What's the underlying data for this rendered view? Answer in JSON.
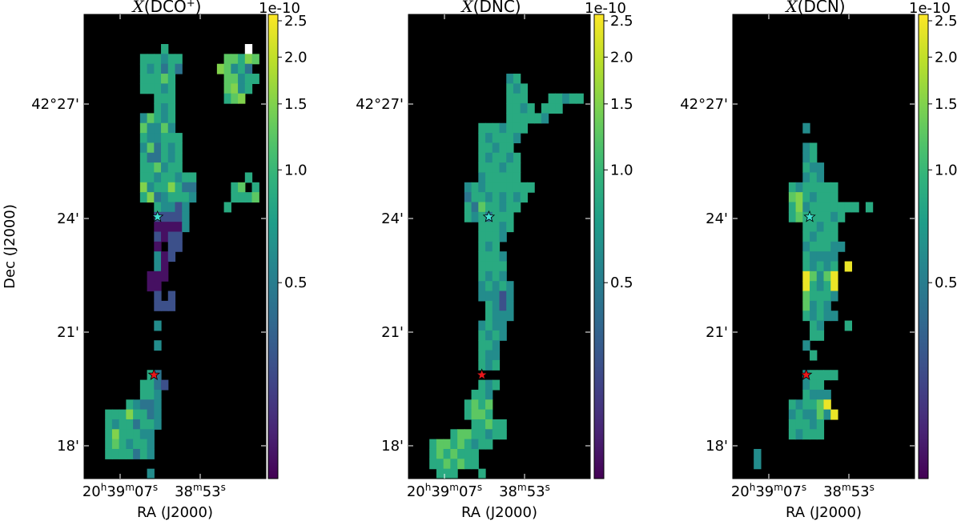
{
  "chart_data": {
    "type": "heatmap",
    "xlabel": "RA (J2000)",
    "ylabel": "Dec (J2000)",
    "y_tick_labels": [
      "42°27'",
      "24'",
      "21'",
      "18'"
    ],
    "x_tick_labels": [
      {
        "h": "20",
        "hu": "h",
        "m": "39",
        "mu": "m",
        "s": "07",
        "su": "s"
      },
      {
        "h": "",
        "hu": "",
        "m": "38",
        "mu": "m",
        "s": "53",
        "su": "s"
      }
    ],
    "colorbar": {
      "colormap": "viridis",
      "scale": "log",
      "multiplier": "1e-10",
      "min": 0.15,
      "max": 2.6,
      "ticks": [
        0.5,
        1.0,
        1.5,
        2.0,
        2.5
      ],
      "tick_labels": [
        "0.5",
        "1.0",
        "1.5",
        "2.0",
        "2.5"
      ]
    },
    "panels": [
      {
        "title_main": "X",
        "title_species": "(DCO",
        "title_sup": "+",
        "title_end": ")",
        "grid": [
          "..........................",
          "..........................",
          "..........................",
          "...........+...........|..",
          "........+++=++......**+$*.",
          "........+=+%+%.....$*=+%..",
          "........+++*+.......**=++.",
          "........+++=+.......*$=+..",
          "..........+++.......+*$...",
          "..........+=+.............",
          "........=*+=+.............",
          "........*==*=.............",
          "........+==+++............",
          "........=*%+=+............",
          "........+%%+=+............",
          "........++*=++............",
          "........++=++=++.......+..",
          "........$=++$+%%.....+*.+.",
          "........+$%=+++=.....+++*.",
          "..........+==-=.....+.....",
          "..........----=...........",
          "..........::::=...........",
          "..........-:--............",
          "..........:.--............",
          "..........=:-.............",
          "..........=:..............",
          ".........:::..............",
          ".........::...............",
          "..........-.-.............",
          "..........---.............",
          "..........................",
          "..........=...............",
          "..........................",
          "..........=...............",
          "..........................",
          "..........................",
          ".........+%...............",
          "........++%-..............",
          "........++=...............",
          "......+=%%=...............",
          "...+++$++%=...............",
          "...+=++%++=...............",
          "...+$+++==................",
          "...+*+=++=................",
          "...++++%+=................",
          "..........................",
          ".........=................"
        ],
        "stars": [
          {
            "row": 20.5,
            "col": 10.5,
            "color": "#40e0d0"
          },
          {
            "row": 36.5,
            "col": 10.0,
            "color": "#e8171b"
          }
        ]
      },
      {
        "title_main": "X",
        "title_species": "(DNC)",
        "title_sup": "",
        "title_end": "",
        "grid": [
          "..........................",
          "..........................",
          "..........................",
          "..........................",
          "..........................",
          "..........................",
          "..............=+..........",
          "..............+=+.........",
          "..............+++...++=++.",
          "..............++=+.+++....",
          "..............+++++=......",
          "..........+++=+++.........",
          "..........+=+++=..........",
          "..........++=++...........",
          "..........+=++=+..........",
          "..........+++=++..........",
          "..........=+++++..........",
          "........=+=+++++++........",
          "........%++=+=+=+.........",
          "........+%*++=++..........",
          "........+=+%+++...........",
          "..........+++=+...........",
          "..........+++=............",
          "..........+=+.............",
          "..........+++=............",
          "..........++++............",
          "..........+=+=............",
          "..........=+=+=...........",
          "..........===-=...........",
          "...........+=-=...........",
          "...........+===...........",
          "..........=+==............",
          "..........+=+=............",
          "..........++=.............",
          "..........+==.............",
          "..........+=+.............",
          "..........................",
          "..........+=+.............",
          ".........++=..............",
          "........+*+*..............",
          "........+**+..............",
          ".........++*++............",
          "......+**++=++............",
          "...+**+*+=++..............",
          "...+*+*+++................",
          "...++*+*++................",
          "....+++...+..............."
        ],
        "stars": [
          {
            "row": 20.5,
            "col": 11.5,
            "color": "#40e0d0"
          },
          {
            "row": 36.5,
            "col": 10.5,
            "color": "#e8171b"
          }
        ]
      },
      {
        "title_main": "X",
        "title_species": "(DCN)",
        "title_sup": "",
        "title_end": "",
        "grid": [
          "..........................",
          "..........................",
          "..........................",
          "..........................",
          "..........................",
          "..........................",
          "..........................",
          "..........................",
          "..........................",
          "..........................",
          "..........................",
          "..........=...............",
          "..........................",
          "..........=+..............",
          "..........=+..............",
          "..........+==.............",
          "..........=+=.............",
          "........+=+++++...........",
          "........*$+=+++...........",
          "........+$=+++++++.+......",
          "........+*++++=+..........",
          "..........++=++...........",
          "..........+=+++...........",
          "..........=+++==..........",
          "..........+====...........",
          "..........+=+=+.@.........",
          "..........@*=*@...........",
          "..........@+=+@...........",
          "..........*+++=...........",
          "..........*=+=............",
          "..........+=+==...........",
          "...........+=...+.........",
          "...........++.............",
          "..........=...............",
          "...........+..............",
          "..........................",
          "..........=++++...........",
          "..........=++.............",
          "..........+===............",
          "........+=++*@............",
          "........=+==*=@...........",
          "........+++=+.............",
          "........+=+++.............",
          "..........................",
          "...=......................",
          "...=......................",
          ".........................."
        ],
        "stars": [
          {
            "row": 20.5,
            "col": 11.0,
            "color": "#40e0d0"
          },
          {
            "row": 36.5,
            "col": 10.5,
            "color": "#e8171b"
          }
        ]
      }
    ]
  }
}
